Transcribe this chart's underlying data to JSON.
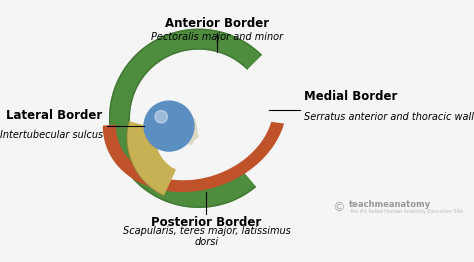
{
  "bg_color": "#f5f5f5",
  "anterior_border_label": "Anterior Border",
  "anterior_border_sub": "Pectoralis major and minor",
  "lateral_border_label": "Lateral Border",
  "lateral_border_sub": "Intertubecular sulcus",
  "medial_border_label": "Medial Border",
  "medial_border_sub": "Serratus anterior and thoracic wall",
  "posterior_border_label": "Posterior Border",
  "posterior_border_sub": "Scapularis, teres major, latissimus\ndorsi",
  "watermark_symbol": "©",
  "watermark_text": "teachmeanatomy",
  "watermark_sub": "The #1 Rated Human Anatomy Education Site",
  "color_red": "#c0522a",
  "color_green": "#4e8c3e",
  "color_green_border": "#3a6e2e",
  "color_yellow": "#c8b055",
  "color_blue": "#5b8fc2",
  "label_fontsize": 8.5,
  "sub_fontsize": 7.0
}
